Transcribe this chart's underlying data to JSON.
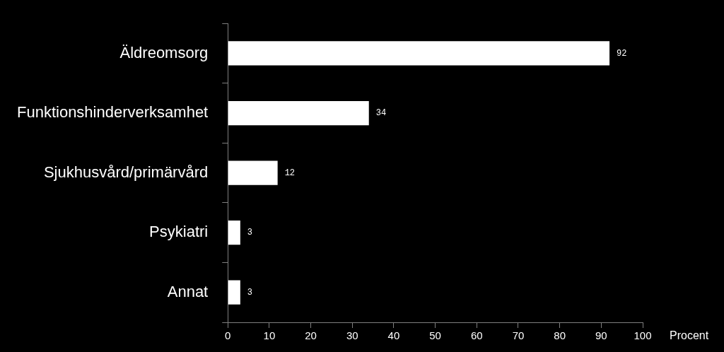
{
  "chart_data": {
    "type": "bar",
    "orientation": "horizontal",
    "xlabel": "Procent",
    "categories": [
      "Äldreomsorg",
      "Funktionshinderverksamhet",
      "Sjukhusvård/primärvård",
      "Psykiatri",
      "Annat"
    ],
    "values": [
      92,
      34,
      12,
      3,
      3
    ],
    "color": "#ffffff",
    "xlim": [
      0,
      100
    ],
    "xticks": [
      0,
      10,
      20,
      30,
      40,
      50,
      60,
      70,
      80,
      90,
      100
    ],
    "data_labels": true,
    "grid": false,
    "legend": false
  }
}
